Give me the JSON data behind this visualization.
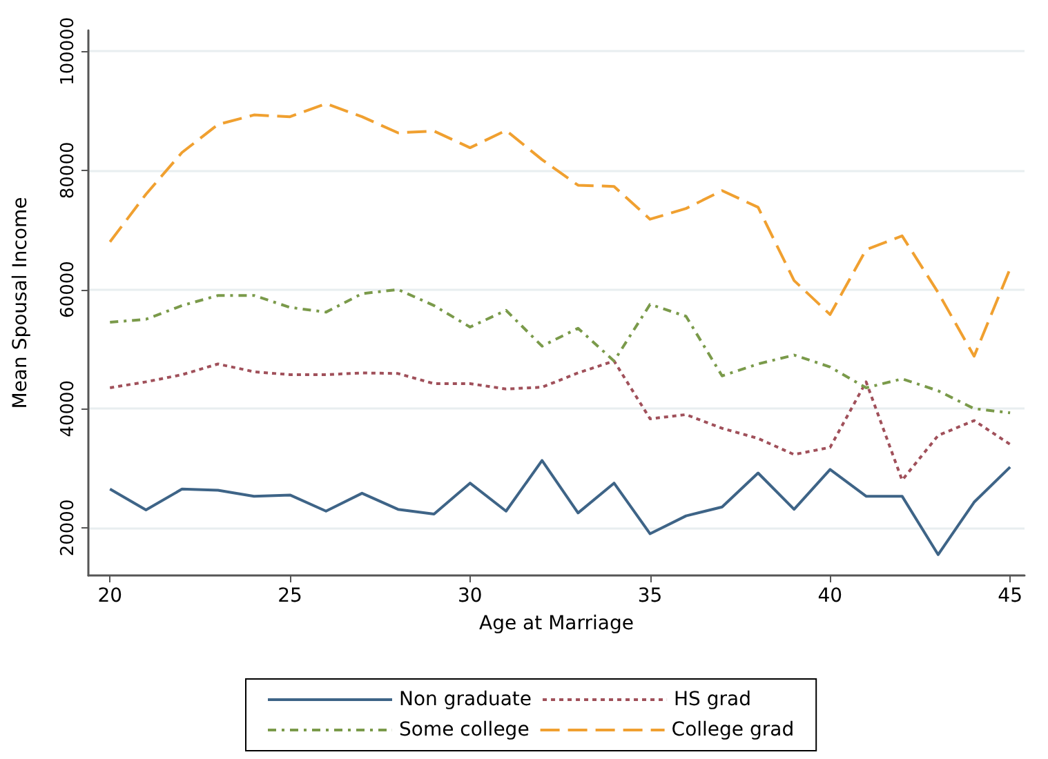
{
  "chart_data": {
    "type": "line",
    "xlabel": "Age at Marriage",
    "ylabel": "Mean Spousal Income",
    "x": [
      20,
      21,
      22,
      23,
      24,
      25,
      26,
      27,
      28,
      29,
      30,
      31,
      32,
      33,
      34,
      35,
      36,
      37,
      38,
      39,
      40,
      41,
      42,
      43,
      44,
      45
    ],
    "series": [
      {
        "name": "Non graduate",
        "color": "#3e6487",
        "line_style": "solid",
        "values": [
          26500,
          23000,
          26500,
          26300,
          25300,
          25500,
          22800,
          25800,
          23100,
          22300,
          27500,
          22800,
          31300,
          22500,
          27500,
          19000,
          22000,
          23500,
          29200,
          23100,
          29800,
          25300,
          25300,
          15500,
          24300,
          30200
        ]
      },
      {
        "name": "HS grad",
        "color": "#a0505a",
        "line_style": "dotted",
        "values": [
          43500,
          44500,
          45700,
          47500,
          46200,
          45700,
          45700,
          46000,
          45900,
          44200,
          44200,
          43300,
          43600,
          46000,
          48000,
          38300,
          39000,
          36700,
          35000,
          32300,
          33500,
          44500,
          28000,
          35500,
          38000,
          34000
        ]
      },
      {
        "name": "Some college",
        "color": "#7a9a4a",
        "line_style": "dashdot",
        "values": [
          54500,
          55000,
          57300,
          59000,
          59000,
          57000,
          56200,
          59300,
          60000,
          57300,
          53700,
          56500,
          50500,
          53500,
          48000,
          57500,
          55500,
          45500,
          47500,
          49000,
          47000,
          43500,
          45000,
          43000,
          40000,
          39300
        ]
      },
      {
        "name": "College grad",
        "color": "#f0a030",
        "line_style": "dashed",
        "values": [
          68000,
          76000,
          83000,
          87700,
          89300,
          89000,
          91200,
          89000,
          86300,
          86600,
          83800,
          86700,
          81800,
          77500,
          77300,
          71800,
          73600,
          76600,
          73800,
          61500,
          55800,
          66700,
          69000,
          59500,
          48800,
          63500
        ]
      }
    ],
    "xlim": [
      19.4,
      45.4
    ],
    "xticks": [
      20,
      25,
      30,
      35,
      40,
      45
    ],
    "ylim": [
      12000,
      103500
    ],
    "yticks": [
      20000,
      40000,
      60000,
      80000,
      100000
    ],
    "grid": "y",
    "legend": "bottom",
    "marker": "none"
  }
}
